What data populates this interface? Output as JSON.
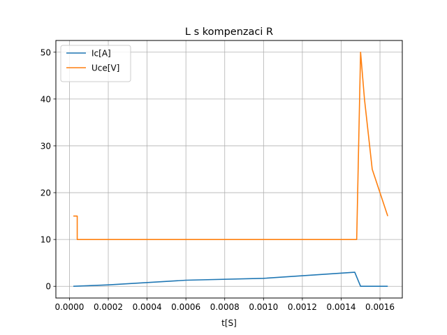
{
  "chart_data": {
    "type": "line",
    "title": "L s kompenzaci R",
    "xlabel": "t[S]",
    "ylabel": "",
    "xlim": [
      -7e-05,
      0.001715
    ],
    "ylim": [
      -2.5,
      52.5
    ],
    "xticks": [
      0.0,
      0.0002,
      0.0004,
      0.0006,
      0.0008,
      0.001,
      0.0012,
      0.0014,
      0.0016
    ],
    "xtick_labels": [
      "0.0000",
      "0.0002",
      "0.0004",
      "0.0006",
      "0.0008",
      "0.0010",
      "0.0012",
      "0.0014",
      "0.0016"
    ],
    "yticks": [
      0,
      10,
      20,
      30,
      40,
      50
    ],
    "ytick_labels": [
      "0",
      "10",
      "20",
      "30",
      "40",
      "50"
    ],
    "grid": true,
    "legend_position": "top-left",
    "series": [
      {
        "name": "Ic[A]",
        "color": "#1f77b4",
        "x": [
          2e-05,
          0.0002,
          0.0006,
          0.001,
          0.00147,
          0.0015,
          0.00164
        ],
        "y": [
          0.0,
          0.3,
          1.3,
          1.7,
          3.0,
          0.0,
          0.0
        ]
      },
      {
        "name": "Uce[V]",
        "color": "#ff7f0e",
        "x": [
          2e-05,
          4e-05,
          4e-05,
          0.00148,
          0.0015,
          0.00152,
          0.00156,
          0.00164
        ],
        "y": [
          15,
          15,
          10,
          10,
          50,
          40,
          25,
          15
        ]
      }
    ]
  }
}
